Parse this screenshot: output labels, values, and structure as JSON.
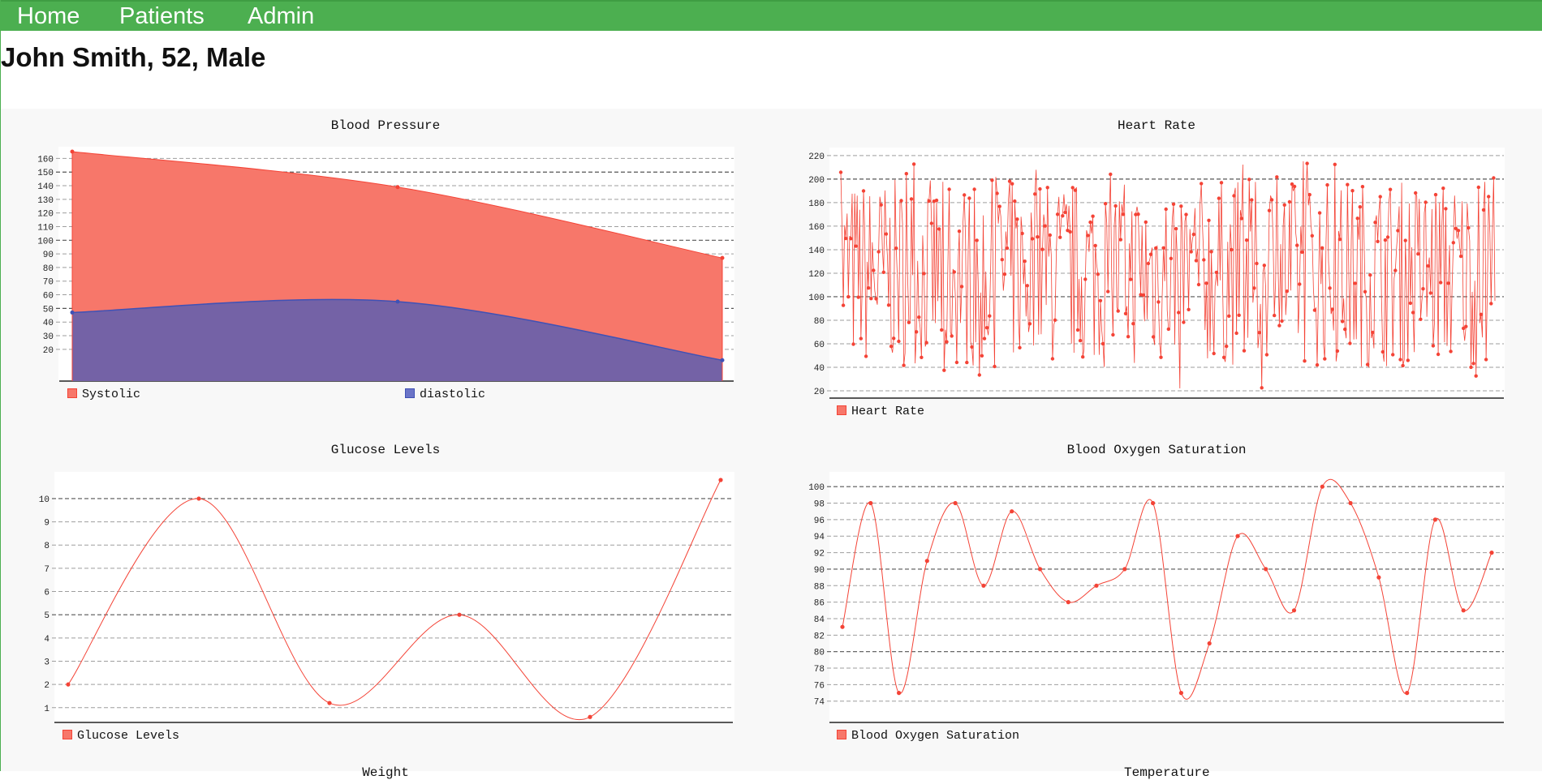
{
  "nav": {
    "items": [
      {
        "label": "Home"
      },
      {
        "label": "Patients"
      },
      {
        "label": "Admin"
      }
    ],
    "color": "#4caf50"
  },
  "patient": {
    "header": "John Smith, 52, Male"
  },
  "colors": {
    "red": "#f44336",
    "red_fill": "#f7776a",
    "blue": "#3f51b5",
    "blue_fill": "#7462a6"
  },
  "charts": [
    {
      "id": "bp",
      "title": "Blood Pressure",
      "chart_data": {
        "type": "area",
        "x": [
          0,
          1,
          2
        ],
        "series": [
          {
            "name": "Systolic",
            "values": [
              165,
              139,
              87
            ],
            "color": "#f44336"
          },
          {
            "name": "diastolic",
            "values": [
              47,
              55,
              12
            ],
            "color": "#3f51b5"
          }
        ],
        "yticks": [
          20,
          30,
          40,
          50,
          60,
          70,
          80,
          90,
          100,
          110,
          120,
          130,
          140,
          150,
          160
        ],
        "ylim": [
          8,
          165
        ]
      }
    },
    {
      "id": "hr",
      "title": "Heart Rate",
      "chart_data": {
        "type": "line",
        "series": [
          {
            "name": "Heart Rate",
            "count": 520,
            "min": 20,
            "max": 220,
            "color": "#f44336"
          }
        ],
        "yticks": [
          20,
          40,
          60,
          80,
          100,
          120,
          140,
          160,
          180,
          200,
          220
        ],
        "ylim": [
          20,
          222
        ]
      }
    },
    {
      "id": "glu",
      "title": "Glucose Levels",
      "chart_data": {
        "type": "line",
        "x": [
          0,
          1,
          2,
          3,
          4,
          5
        ],
        "series": [
          {
            "name": "Glucose Levels",
            "values": [
              2,
              10,
              1.2,
              5,
              0.6,
              10.8
            ],
            "color": "#f44336"
          }
        ],
        "yticks": [
          1,
          2,
          3,
          4,
          5,
          6,
          7,
          8,
          9,
          10
        ],
        "ylim": [
          0.4,
          10.8
        ]
      }
    },
    {
      "id": "oxy",
      "title": "Blood Oxygen Saturation",
      "chart_data": {
        "type": "line",
        "series": [
          {
            "name": "Blood Oxygen Saturation",
            "values": [
              83,
              98,
              75,
              91,
              98,
              88,
              97,
              90,
              86,
              88,
              90,
              98,
              75,
              81,
              94,
              90,
              85,
              100,
              98,
              89,
              75,
              96,
              85,
              92
            ],
            "color": "#f44336"
          }
        ],
        "yticks": [
          74,
          76,
          78,
          80,
          82,
          84,
          86,
          88,
          90,
          92,
          94,
          96,
          98,
          100
        ],
        "ylim": [
          72.5,
          101
        ]
      }
    }
  ],
  "cut_titles": [
    "Weight",
    "Temperature"
  ]
}
